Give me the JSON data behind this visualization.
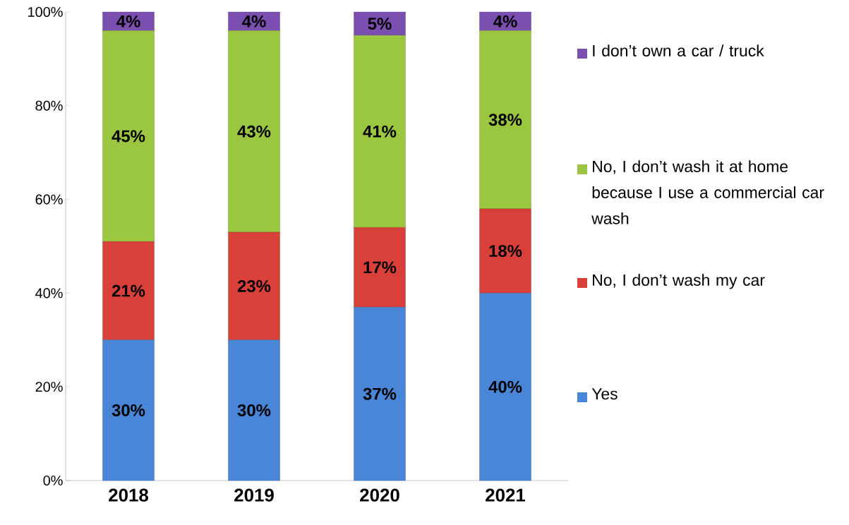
{
  "chart_data": {
    "type": "bar",
    "stacked": true,
    "categories": [
      "2018",
      "2019",
      "2020",
      "2021"
    ],
    "series": [
      {
        "name": "Yes",
        "color": "#4a86d8",
        "values": [
          30,
          30,
          37,
          40
        ],
        "value_labels": [
          "30%",
          "30%",
          "37%",
          "40%"
        ]
      },
      {
        "name": "No, I don’t wash my car",
        "color": "#d9403a",
        "values": [
          21,
          23,
          17,
          18
        ],
        "value_labels": [
          "21%",
          "23%",
          "17%",
          "18%"
        ]
      },
      {
        "name": "No, I don’t wash it at home because I use a commercial car wash",
        "color": "#9bc63f",
        "values": [
          45,
          43,
          41,
          38
        ],
        "value_labels": [
          "45%",
          "43%",
          "41%",
          "38%"
        ]
      },
      {
        "name": "I don’t own a car / truck",
        "color": "#7a4fb0",
        "values": [
          4,
          4,
          5,
          4
        ],
        "value_labels": [
          "4%",
          "4%",
          "5%",
          "4%"
        ]
      }
    ],
    "ylim": [
      0,
      100
    ],
    "yticks": [
      {
        "value": 0,
        "label": "0%"
      },
      {
        "value": 20,
        "label": "20%"
      },
      {
        "value": 40,
        "label": "40%"
      },
      {
        "value": 60,
        "label": "60%"
      },
      {
        "value": 80,
        "label": "80%"
      },
      {
        "value": 100,
        "label": "100%"
      }
    ],
    "grid": false,
    "legend": "right"
  }
}
